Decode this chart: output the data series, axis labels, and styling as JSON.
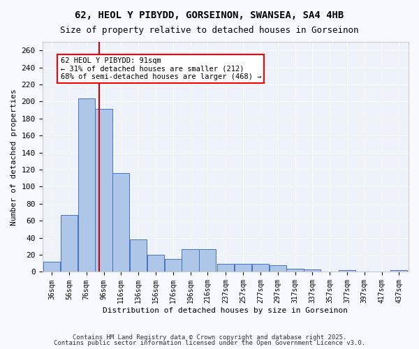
{
  "title1": "62, HEOL Y PIBYDD, GORSEINON, SWANSEA, SA4 4HB",
  "title2": "Size of property relative to detached houses in Gorseinon",
  "xlabel": "Distribution of detached houses by size in Gorseinon",
  "ylabel": "Number of detached properties",
  "bar_color": "#aec6e8",
  "bar_edge_color": "#4472c4",
  "bg_color": "#eef2fb",
  "grid_color": "#ffffff",
  "annotation_text": "62 HEOL Y PIBYDD: 91sqm\n← 31% of detached houses are smaller (212)\n68% of semi-detached houses are larger (468) →",
  "vline_x": 91,
  "vline_color": "#cc0000",
  "bin_edges": [
    36,
    56,
    76,
    96,
    116,
    136,
    156,
    176,
    196,
    216,
    237,
    257,
    277,
    297,
    317,
    337,
    357,
    377,
    397,
    417,
    437
  ],
  "bin_labels": [
    "36sqm",
    "56sqm",
    "76sqm",
    "96sqm",
    "116sqm",
    "136sqm",
    "156sqm",
    "176sqm",
    "196sqm",
    "216sqm",
    "237sqm",
    "257sqm",
    "277sqm",
    "297sqm",
    "317sqm",
    "337sqm",
    "357sqm",
    "377sqm",
    "397sqm",
    "417sqm",
    "437sqm"
  ],
  "bar_heights": [
    12,
    67,
    204,
    191,
    116,
    38,
    20,
    15,
    27,
    27,
    9,
    9,
    9,
    8,
    4,
    3,
    0,
    2,
    0,
    0,
    2
  ],
  "ylim": [
    0,
    270
  ],
  "yticks": [
    0,
    20,
    40,
    60,
    80,
    100,
    120,
    140,
    160,
    180,
    200,
    220,
    240,
    260
  ],
  "footer1": "Contains HM Land Registry data © Crown copyright and database right 2025.",
  "footer2": "Contains public sector information licensed under the Open Government Licence v3.0."
}
